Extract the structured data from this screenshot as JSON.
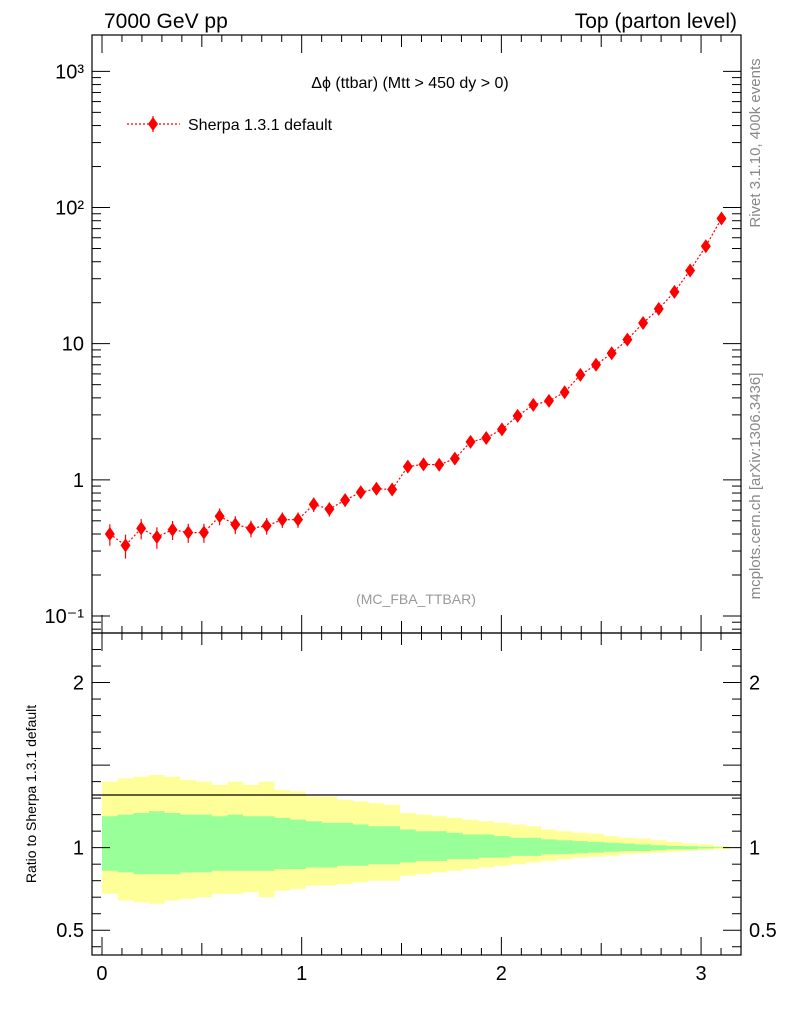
{
  "header": {
    "left": "7000 GeV pp",
    "right": "Top (parton level)"
  },
  "side_labels": {
    "rivet": "Rivet 3.1.10,  400k events",
    "mcplots": "mcplots.cern.ch [arXiv:1306.3436]"
  },
  "chart_data": [
    {
      "type": "scatter",
      "title": "Δϕ (ttbar) (Mtt > 450 dy > 0)",
      "annotation": "(MC_FBA_TTBAR)",
      "yscale": "log",
      "xlim": [
        -0.05,
        3.2
      ],
      "ylim": [
        0.075,
        1850
      ],
      "y_tick_labels": [
        "10⁻¹",
        "1",
        "10",
        "10²",
        "10³"
      ],
      "legend": {
        "entries": [
          "Sherpa 1.3.1 default"
        ],
        "placement": "top-left"
      },
      "series": [
        {
          "name": "Sherpa 1.3.1 default",
          "color": "#ff0000",
          "x": [
            0.0393,
            0.1178,
            0.1963,
            0.2749,
            0.3534,
            0.432,
            0.5105,
            0.589,
            0.6676,
            0.7461,
            0.8247,
            0.9032,
            0.9817,
            1.0603,
            1.1388,
            1.2174,
            1.2959,
            1.3744,
            1.453,
            1.5315,
            1.6101,
            1.6886,
            1.7671,
            1.8457,
            1.9242,
            2.0028,
            2.0813,
            2.1598,
            2.2384,
            2.3169,
            2.3955,
            2.474,
            2.5525,
            2.6311,
            2.7096,
            2.7882,
            2.8667,
            2.9452,
            3.0238,
            3.1023
          ],
          "y": [
            0.4,
            0.33,
            0.44,
            0.38,
            0.43,
            0.41,
            0.41,
            0.54,
            0.47,
            0.44,
            0.46,
            0.51,
            0.51,
            0.66,
            0.61,
            0.71,
            0.81,
            0.86,
            0.85,
            1.25,
            1.3,
            1.29,
            1.43,
            1.9,
            2.03,
            2.35,
            2.95,
            3.55,
            3.8,
            4.4,
            5.9,
            7.0,
            8.5,
            10.7,
            14.2,
            18.0,
            24.0,
            34.5,
            52.0,
            83.0
          ],
          "yerr_frac": [
            0.18,
            0.2,
            0.17,
            0.18,
            0.16,
            0.16,
            0.16,
            0.14,
            0.15,
            0.14,
            0.14,
            0.13,
            0.13,
            0.12,
            0.12,
            0.11,
            0.1,
            0.1,
            0.1,
            0.08,
            0.08,
            0.08,
            0.07,
            0.06,
            0.06,
            0.06,
            0.05,
            0.05,
            0.05,
            0.05,
            0.04,
            0.04,
            0.04,
            0.03,
            0.03,
            0.03,
            0.03,
            0.02,
            0.02,
            0.02
          ]
        }
      ]
    },
    {
      "type": "area",
      "ylabel": "Ratio to Sherpa 1.3.1 default",
      "xlim": [
        -0.05,
        3.2
      ],
      "ylim": [
        0.35,
        2.3
      ],
      "x_tick_labels": [
        "0",
        "1",
        "2",
        "3"
      ],
      "y_tick_labels": [
        "0.5",
        "1",
        "2"
      ],
      "reference_line": 1,
      "bin_edges": [
        0.0,
        0.0785,
        0.1571,
        0.2356,
        0.3142,
        0.3927,
        0.4712,
        0.5498,
        0.6283,
        0.7069,
        0.7854,
        0.8639,
        0.9425,
        1.021,
        1.0996,
        1.1781,
        1.2566,
        1.3352,
        1.4137,
        1.4923,
        1.5708,
        1.6493,
        1.7279,
        1.8064,
        1.885,
        1.9635,
        2.042,
        2.1206,
        2.1991,
        2.2777,
        2.3562,
        2.4347,
        2.5133,
        2.5918,
        2.6704,
        2.7489,
        2.8274,
        2.906,
        2.9845,
        3.0631,
        3.1416
      ],
      "bands": [
        {
          "name": "outer",
          "color": "#ffff99",
          "lower": [
            0.72,
            0.68,
            0.67,
            0.66,
            0.68,
            0.69,
            0.7,
            0.72,
            0.72,
            0.73,
            0.7,
            0.74,
            0.75,
            0.77,
            0.77,
            0.78,
            0.79,
            0.8,
            0.8,
            0.83,
            0.84,
            0.85,
            0.86,
            0.87,
            0.88,
            0.89,
            0.9,
            0.91,
            0.92,
            0.93,
            0.94,
            0.945,
            0.95,
            0.96,
            0.965,
            0.97,
            0.975,
            0.98,
            0.985,
            0.99
          ],
          "upper": [
            1.4,
            1.42,
            1.43,
            1.44,
            1.43,
            1.41,
            1.4,
            1.38,
            1.4,
            1.38,
            1.4,
            1.35,
            1.34,
            1.31,
            1.31,
            1.29,
            1.28,
            1.27,
            1.26,
            1.21,
            1.2,
            1.19,
            1.18,
            1.17,
            1.16,
            1.15,
            1.14,
            1.13,
            1.11,
            1.1,
            1.09,
            1.085,
            1.07,
            1.06,
            1.055,
            1.045,
            1.035,
            1.025,
            1.02,
            1.01
          ]
        },
        {
          "name": "inner",
          "color": "#99ff99",
          "lower": [
            0.86,
            0.85,
            0.84,
            0.84,
            0.84,
            0.85,
            0.85,
            0.86,
            0.86,
            0.86,
            0.86,
            0.87,
            0.87,
            0.88,
            0.88,
            0.89,
            0.89,
            0.9,
            0.9,
            0.91,
            0.92,
            0.92,
            0.93,
            0.93,
            0.94,
            0.94,
            0.95,
            0.95,
            0.96,
            0.96,
            0.965,
            0.97,
            0.975,
            0.98,
            0.98,
            0.985,
            0.99,
            0.99,
            0.995,
            0.998
          ],
          "upper": [
            1.19,
            1.2,
            1.21,
            1.22,
            1.21,
            1.2,
            1.2,
            1.19,
            1.2,
            1.19,
            1.19,
            1.18,
            1.17,
            1.16,
            1.15,
            1.15,
            1.14,
            1.13,
            1.13,
            1.11,
            1.1,
            1.1,
            1.09,
            1.08,
            1.08,
            1.07,
            1.06,
            1.06,
            1.05,
            1.045,
            1.04,
            1.035,
            1.03,
            1.025,
            1.02,
            1.015,
            1.01,
            1.008,
            1.005,
            1.002
          ]
        }
      ]
    }
  ]
}
